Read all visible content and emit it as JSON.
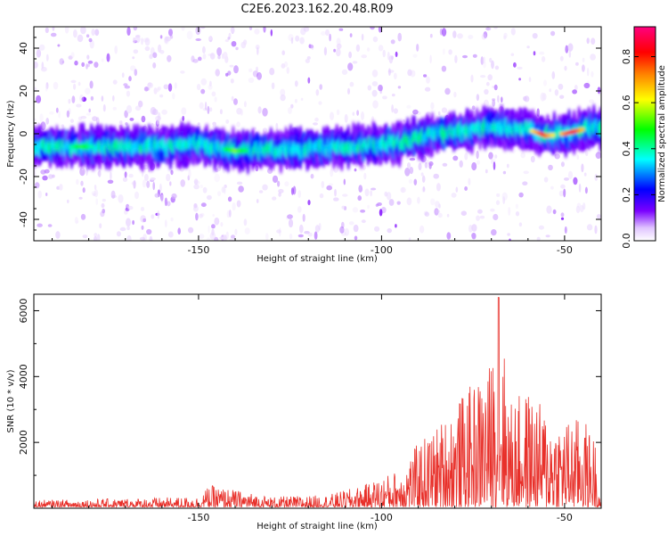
{
  "figure_title": "C2E6.2023.162.20.48.R09",
  "chart_data": [
    {
      "type": "heatmap",
      "xlabel": "Height of straight line (km)",
      "ylabel": "Frequency (Hz)",
      "xlim": [
        -195,
        -40
      ],
      "ylim": [
        -50,
        50
      ],
      "x_ticks": [
        -150,
        -100,
        -50
      ],
      "y_ticks": [
        40,
        20,
        0,
        -20,
        -40
      ],
      "colorbar": {
        "label": "Normalized spectral amplitude",
        "range": [
          0,
          0.93
        ],
        "ticks": [
          0.0,
          0.2,
          0.4,
          0.6,
          0.8
        ],
        "colormap": [
          "#ffffff",
          "#7a00ff",
          "#0000ff",
          "#00ffff",
          "#00ff00",
          "#ffff00",
          "#ff8000",
          "#ff0000",
          "#ff0080"
        ]
      },
      "ridge": {
        "description_points_x": [
          -195,
          -180,
          -160,
          -150,
          -140,
          -120,
          -110,
          -100,
          -95,
          -90,
          -85,
          -80,
          -70,
          -60,
          -55,
          -50,
          -45,
          -41
        ],
        "description_points_y": [
          -6,
          -6,
          -6,
          -5,
          -8,
          -7,
          -6,
          -5,
          -4,
          -2,
          0,
          1,
          3,
          2,
          -1,
          0,
          2,
          3
        ],
        "peak_amplitude_points": [
          {
            "x": -182,
            "y": -6,
            "value": 0.5
          },
          {
            "x": -140,
            "y": -8,
            "value": 0.55
          },
          {
            "x": -56,
            "y": -2,
            "value": 0.8
          },
          {
            "x": -48,
            "y": 1,
            "value": 0.85
          }
        ]
      }
    },
    {
      "type": "line",
      "xlabel": "Height of straight line (km)",
      "ylabel": "SNR (10 * v/v)",
      "xlim": [
        -195,
        -40
      ],
      "ylim": [
        0,
        6500
      ],
      "x_ticks": [
        -150,
        -100,
        -50
      ],
      "y_ticks": [
        2000,
        4000,
        6000
      ],
      "color": "#e8302a",
      "envelope": {
        "x": [
          -195,
          -170,
          -150,
          -147,
          -130,
          -115,
          -105,
          -95,
          -90,
          -85,
          -80,
          -75,
          -70,
          -68,
          -65,
          -60,
          -55,
          -50,
          -45,
          -41
        ],
        "y": [
          250,
          300,
          350,
          700,
          350,
          400,
          700,
          1200,
          2000,
          2500,
          3200,
          3800,
          4500,
          6400,
          3300,
          3600,
          3000,
          2700,
          2800,
          2000
        ]
      }
    }
  ]
}
